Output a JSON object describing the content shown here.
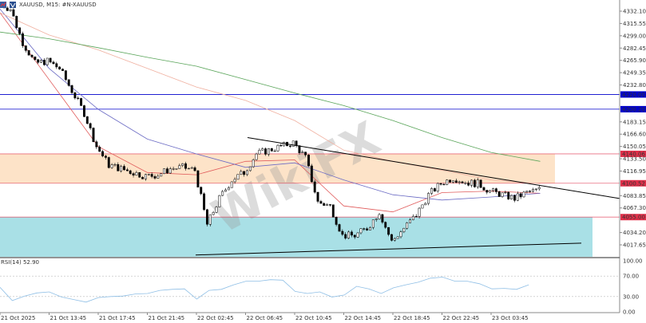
{
  "header": {
    "title": "XAUUSD, M15:  #N-XAUUSD",
    "icons": [
      "chart-window-icon",
      "one-click-trading-icon"
    ]
  },
  "watermark": "WikiFX",
  "colors": {
    "bull": "#ffffff",
    "bear": "#000000",
    "ma_fast": "#e05a5a",
    "ma_mid": "#6b6bc4",
    "ma_slow": "#f0b0a0",
    "ma_200": "#5aa55a",
    "resistance_zone": "#fde3c8",
    "support_zone": "#a9e0e6",
    "blue_level": "#0000cc",
    "red_level": "#e0304a",
    "rsi": "#8fbfe6"
  },
  "chart_data": {
    "type": "candlestick",
    "symbol": "XAUUSD",
    "timeframe": "M15",
    "price_axis": {
      "ticks": [
        "4332.10",
        "4315.55",
        "4299.00",
        "4282.45",
        "4265.90",
        "4249.35",
        "4232.80",
        "4183.15",
        "4166.60",
        "4150.05",
        "4133.50",
        "4116.95",
        "4083.85",
        "4067.30",
        "4034.20",
        "4017.65"
      ],
      "range": [
        4003,
        4345
      ]
    },
    "time_axis": {
      "ticks": [
        "21 Oct 2025",
        "21 Oct 13:45",
        "21 Oct 17:45",
        "21 Oct 21:45",
        "22 Oct 02:45",
        "22 Oct 06:45",
        "22 Oct 10:45",
        "22 Oct 14:45",
        "22 Oct 18:45",
        "22 Oct 22:45",
        "23 Oct 03:45"
      ]
    },
    "hourly_close": [
      4335,
      4290,
      4262,
      4265,
      4255,
      4225,
      4195,
      4150,
      4125,
      4120,
      4115,
      4110,
      4112,
      4120,
      4122,
      4118,
      4045,
      4080,
      4105,
      4115,
      4140,
      4145,
      4150,
      4155,
      4135,
      4075,
      4070,
      4030,
      4030,
      4040,
      4062,
      4022,
      4040,
      4058,
      4085,
      4100,
      4108,
      4102,
      4100,
      4090,
      4085,
      4080,
      4088,
      4092
    ],
    "moving_averages_4h_samples": {
      "fast": [
        4330,
        4240,
        4150,
        4115,
        4112,
        4130,
        4132,
        4070,
        4062,
        4088,
        4090,
        4087
      ],
      "mid": [
        4335,
        4255,
        4200,
        4160,
        4140,
        4122,
        4128,
        4105,
        4085,
        4078,
        4082,
        4087
      ],
      "slow": [
        4330,
        4300,
        4280,
        4255,
        4230,
        4212,
        4185,
        4145,
        4130,
        4118,
        4105,
        4100
      ],
      "ma200": [
        4304,
        4295,
        4283,
        4270,
        4258,
        4240,
        4222,
        4205,
        4185,
        4162,
        4142,
        4130
      ]
    },
    "levels": [
      {
        "price": 4220.0,
        "label": "4220.00",
        "color": "blue"
      },
      {
        "price": 4200.2,
        "label": "4200.20",
        "color": "blue"
      },
      {
        "price": 4140.06,
        "label": "4140.06",
        "color": "red"
      },
      {
        "price": 4100.52,
        "label": "4100.52",
        "color": "red"
      },
      {
        "price": 4055.0,
        "label": "4055.00",
        "color": "red"
      }
    ],
    "zones": [
      {
        "from": 4100.52,
        "to": 4140.06,
        "type": "resistance"
      },
      {
        "from": 4003,
        "to": 4055.0,
        "type": "support"
      }
    ],
    "trendlines": [
      {
        "from": [
          "22 Oct 06:45",
          4162
        ],
        "to": [
          "23 Oct 08:00",
          4080
        ]
      },
      {
        "from": [
          "22 Oct 02:45",
          4004
        ],
        "to": [
          "23 Oct 06:45",
          4020
        ]
      }
    ],
    "rsi": {
      "label": "RSI(14) 52.90",
      "ticks": [
        "100.00",
        "70.00",
        "30.00",
        "0.00"
      ],
      "levels": [
        70,
        30
      ],
      "hourly": [
        48,
        22,
        31,
        37,
        39,
        29,
        24,
        19,
        28,
        30,
        31,
        35,
        36,
        42,
        44,
        45,
        25,
        42,
        44,
        53,
        60,
        60,
        63,
        62,
        40,
        36,
        39,
        29,
        33,
        50,
        45,
        36,
        47,
        53,
        58,
        66,
        68,
        60,
        60,
        55,
        45,
        46,
        44,
        53
      ]
    }
  }
}
